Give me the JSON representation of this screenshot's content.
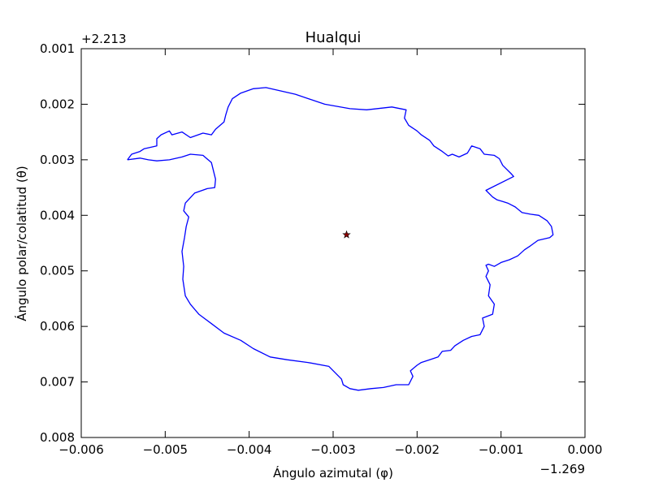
{
  "chart_data": {
    "type": "line",
    "title": "Hualqui",
    "xlabel": "Ángulo azimutal (φ)",
    "ylabel": "Ángulo polar/colatitud (θ)",
    "x_offset_text": "−1.269",
    "y_offset_text": "+2.213",
    "xlim": [
      -0.006,
      0.0
    ],
    "ylim": [
      0.008,
      0.001
    ],
    "y_inverted": true,
    "grid": false,
    "x_ticks": [
      -0.006,
      -0.005,
      -0.004,
      -0.003,
      -0.002,
      -0.001,
      0.0
    ],
    "x_tick_labels": [
      "−0.006",
      "−0.005",
      "−0.004",
      "−0.003",
      "−0.002",
      "−0.001",
      "0.000"
    ],
    "y_ticks": [
      0.001,
      0.002,
      0.003,
      0.004,
      0.005,
      0.006,
      0.007,
      0.008
    ],
    "y_tick_labels": [
      "0.001",
      "0.002",
      "0.003",
      "0.004",
      "0.005",
      "0.006",
      "0.007",
      "0.008"
    ],
    "boundary": {
      "color": "#0000ff",
      "x": [
        -0.00545,
        -0.0053,
        -0.0052,
        -0.0051,
        -0.00495,
        -0.0048,
        -0.0047,
        -0.00455,
        -0.00445,
        -0.0044,
        -0.00441,
        -0.0045,
        -0.00465,
        -0.00476,
        -0.00478,
        -0.00472,
        -0.00475,
        -0.00477,
        -0.0048,
        -0.00478,
        -0.00479,
        -0.00476,
        -0.0047,
        -0.0046,
        -0.00445,
        -0.0043,
        -0.0041,
        -0.00395,
        -0.00375,
        -0.00355,
        -0.0033,
        -0.00305,
        -0.0029,
        -0.00288,
        -0.0028,
        -0.0027,
        -0.00255,
        -0.0024,
        -0.00225,
        -0.0021,
        -0.00205,
        -0.00208,
        -0.002,
        -0.00195,
        -0.00185,
        -0.00175,
        -0.0017,
        -0.0016,
        -0.00155,
        -0.0015,
        -0.00145,
        -0.00135,
        -0.00125,
        -0.0012,
        -0.00122,
        -0.0011,
        -0.00108,
        -0.00115,
        -0.00113,
        -0.00118,
        -0.00115,
        -0.00118,
        -0.00115,
        -0.00108,
        -0.001,
        -0.0009,
        -0.0008,
        -0.00072,
        -0.00065,
        -0.00056,
        -0.00042,
        -0.00038,
        -0.0004,
        -0.00045,
        -0.00055,
        -0.00065,
        -0.00075,
        -0.00083,
        -0.00092,
        -0.00098,
        -0.00105,
        -0.0011,
        -0.00118,
        -0.00085,
        -0.00088,
        -0.00098,
        -0.00102,
        -0.00108,
        -0.0012,
        -0.00125,
        -0.00135,
        -0.0014,
        -0.0015,
        -0.00158,
        -0.00163,
        -0.0017,
        -0.0018,
        -0.00185,
        -0.00195,
        -0.002,
        -0.0021,
        -0.00215,
        -0.00213,
        -0.0023,
        -0.0026,
        -0.0028,
        -0.0031,
        -0.00345,
        -0.0038,
        -0.00395,
        -0.0041,
        -0.0042,
        -0.00425,
        -0.00428,
        -0.0043,
        -0.0044,
        -0.00445,
        -0.00455,
        -0.0047,
        -0.0048,
        -0.00492,
        -0.00495,
        -0.00505,
        -0.0051,
        -0.0051,
        -0.00525,
        -0.0053,
        -0.0054,
        -0.00545
      ],
      "y": [
        0.003,
        0.00297,
        0.003,
        0.00302,
        0.003,
        0.00295,
        0.0029,
        0.00292,
        0.00305,
        0.00335,
        0.0035,
        0.00352,
        0.0036,
        0.00378,
        0.00392,
        0.00403,
        0.0042,
        0.0044,
        0.00465,
        0.00492,
        0.00515,
        0.00545,
        0.0056,
        0.00578,
        0.00595,
        0.00612,
        0.00625,
        0.0064,
        0.00655,
        0.0066,
        0.00665,
        0.00672,
        0.00695,
        0.00705,
        0.00712,
        0.00715,
        0.00712,
        0.0071,
        0.00705,
        0.00705,
        0.0069,
        0.0068,
        0.0067,
        0.00665,
        0.0066,
        0.00655,
        0.00645,
        0.00643,
        0.00635,
        0.0063,
        0.00625,
        0.00618,
        0.00615,
        0.006,
        0.00585,
        0.00578,
        0.0056,
        0.00545,
        0.00525,
        0.0051,
        0.005,
        0.0049,
        0.00488,
        0.00492,
        0.00485,
        0.0048,
        0.00473,
        0.00462,
        0.00455,
        0.00445,
        0.0044,
        0.00435,
        0.0042,
        0.0041,
        0.004,
        0.00398,
        0.00395,
        0.00385,
        0.00378,
        0.00375,
        0.00372,
        0.00367,
        0.00355,
        0.0033,
        0.00325,
        0.0031,
        0.00298,
        0.00292,
        0.0029,
        0.0028,
        0.00275,
        0.00288,
        0.00295,
        0.0029,
        0.00293,
        0.00285,
        0.00275,
        0.00265,
        0.00255,
        0.00248,
        0.00238,
        0.00225,
        0.0021,
        0.00205,
        0.0021,
        0.00208,
        0.002,
        0.00182,
        0.0017,
        0.00172,
        0.0018,
        0.0019,
        0.00205,
        0.0022,
        0.00232,
        0.00245,
        0.00255,
        0.00252,
        0.0026,
        0.0025,
        0.00255,
        0.00248,
        0.00255,
        0.00262,
        0.00275,
        0.0028,
        0.00285,
        0.0029,
        0.003
      ]
    },
    "center_marker": {
      "x": -0.00284,
      "y": 0.00435,
      "symbol": "star",
      "color": "#8b0000"
    }
  }
}
